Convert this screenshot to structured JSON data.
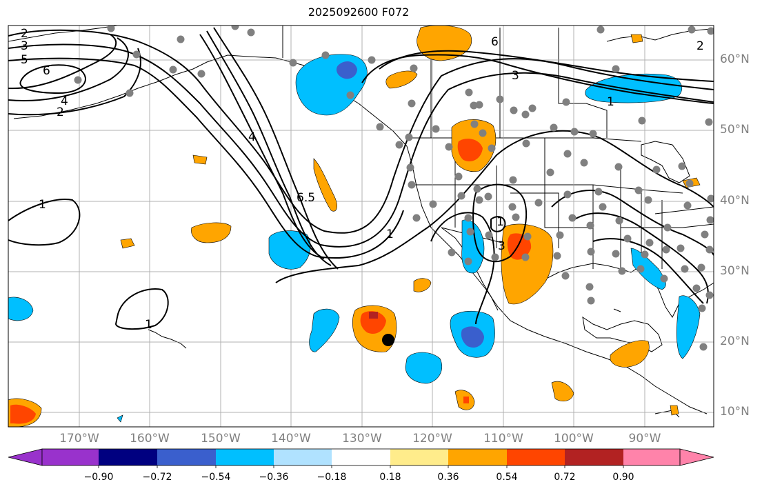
{
  "title": "2025092600 F072",
  "map": {
    "lon_labels": [
      "170°W",
      "160°W",
      "150°W",
      "140°W",
      "130°W",
      "120°W",
      "110°W",
      "100°W",
      "90°W"
    ],
    "lat_labels": [
      "60°N",
      "50°N",
      "40°N",
      "30°N",
      "20°N",
      "10°N"
    ],
    "contour_labels": [
      "2",
      "3",
      "5",
      "6",
      "4",
      "2",
      "4",
      "6.5",
      "1",
      "1",
      "3",
      "1",
      "1",
      "6",
      "3",
      "2",
      "1"
    ],
    "marker": "storm-center"
  },
  "colorbar": {
    "ticks": [
      "−0.90",
      "−0.72",
      "−0.54",
      "−0.36",
      "−0.18",
      "0.18",
      "0.36",
      "0.54",
      "0.72",
      "0.90"
    ],
    "colors": [
      "#9932cc",
      "#000080",
      "#3a5fcd",
      "#00bfff",
      "#b0e2ff",
      "#ffffff",
      "#ffec8b",
      "#ffa500",
      "#ff4500",
      "#b22222",
      "#ff83aa"
    ]
  }
}
